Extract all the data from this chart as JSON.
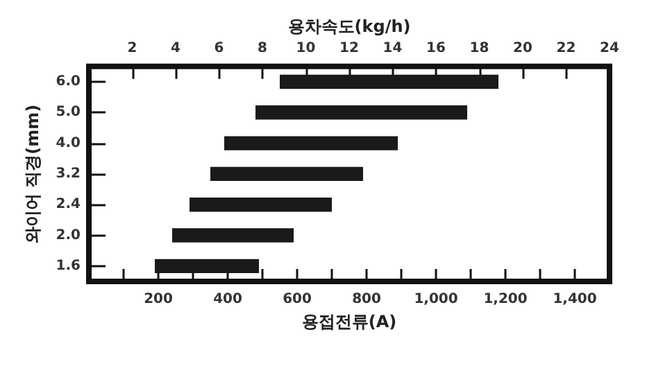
{
  "chart_data": {
    "type": "bar",
    "orientation": "horizontal",
    "xlabel": "용접전류(A)",
    "x2label": "용차속도(kg/h)",
    "ylabel": "와이어 직경(mm)",
    "categories": [
      "6.0",
      "5.0",
      "4.0",
      "3.2",
      "2.4",
      "2.0",
      "1.6"
    ],
    "base": [
      550,
      480,
      390,
      350,
      290,
      240,
      190
    ],
    "values": [
      630,
      610,
      500,
      440,
      410,
      350,
      300
    ],
    "color": "#1a1a1a",
    "xlim": [
      0,
      1500
    ],
    "xticks": [
      {
        "value": 100,
        "label": null
      },
      200,
      {
        "value": 300,
        "label": null
      },
      400,
      {
        "value": 500,
        "label": null
      },
      600,
      {
        "value": 700,
        "label": null
      },
      800,
      {
        "value": 900,
        "label": null
      },
      {
        "value": 1000,
        "label": "1,000"
      },
      {
        "value": 1100,
        "label": null
      },
      {
        "value": 1200,
        "label": "1,200"
      },
      {
        "value": 1300,
        "label": null
      },
      {
        "value": 1400,
        "label": "1,400"
      }
    ],
    "x2lim": [
      0,
      24
    ],
    "x2ticks": [
      2,
      4,
      6,
      8,
      10,
      12,
      14,
      16,
      18,
      20,
      22,
      24
    ],
    "grid": false
  }
}
